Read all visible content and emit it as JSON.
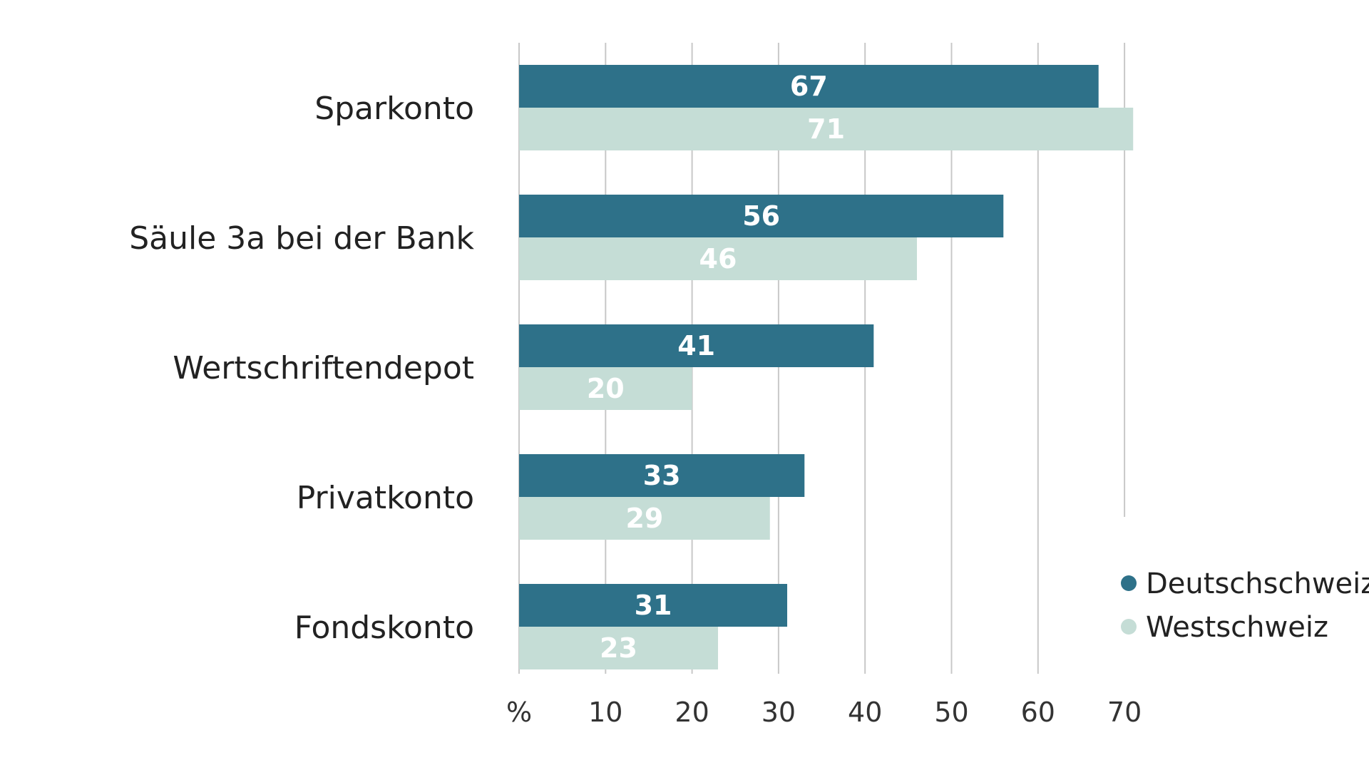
{
  "chart_data": {
    "type": "bar",
    "orientation": "horizontal",
    "categories": [
      "Sparkonto",
      "Säule 3a bei der Bank",
      "Wertschriftendepot",
      "Privatkonto",
      "Fondskonto"
    ],
    "series": [
      {
        "name": "Deutschschweiz",
        "values": [
          67,
          56,
          41,
          33,
          31
        ],
        "color": "#2e7189"
      },
      {
        "name": "Westschweiz",
        "values": [
          71,
          46,
          20,
          29,
          23
        ],
        "color": "#c5ddd6"
      }
    ],
    "tick_labels": [
      "%",
      "10",
      "20",
      "30",
      "40",
      "50",
      "60",
      "70"
    ],
    "xlim": [
      0,
      70
    ],
    "grid": "vertical",
    "grid_color": "#c8c8c8",
    "legend_position": "bottom-right",
    "data_label_color": "#ffffff"
  }
}
